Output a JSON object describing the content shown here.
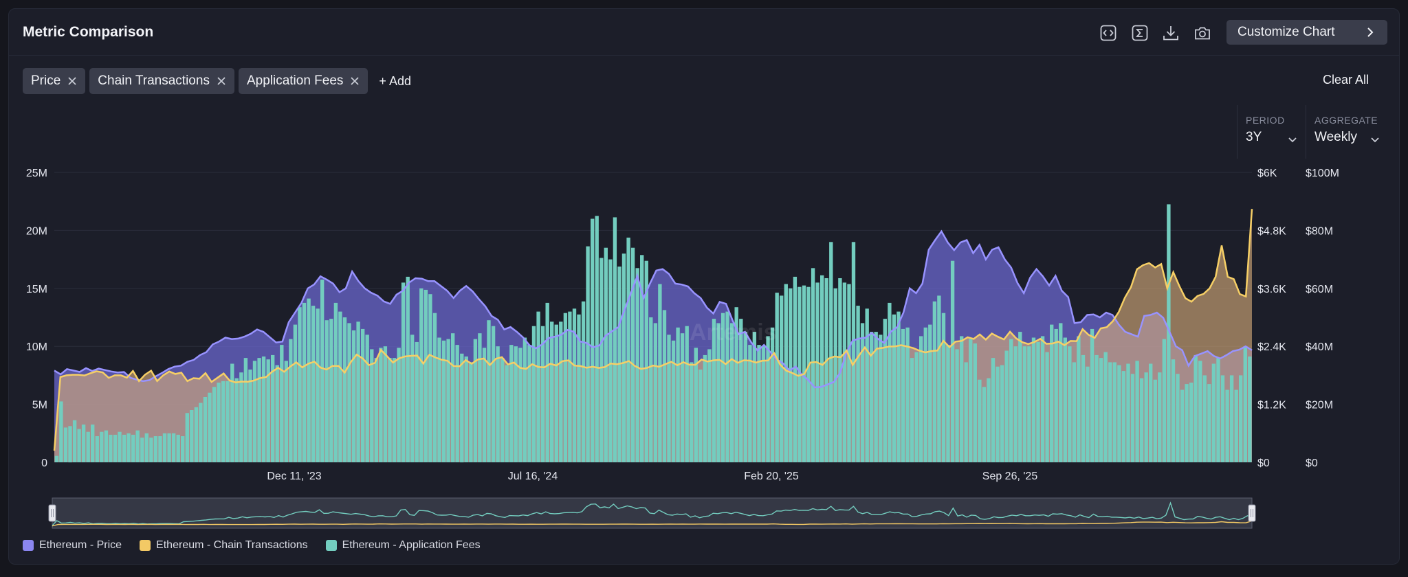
{
  "header": {
    "title": "Metric Comparison",
    "customize_label": "Customize Chart"
  },
  "toolbar_icons": [
    "code-icon",
    "sigma-icon",
    "download-icon",
    "camera-icon"
  ],
  "chips": [
    {
      "label": "Price"
    },
    {
      "label": "Chain Transactions"
    },
    {
      "label": "Application Fees"
    }
  ],
  "add_label": "+ Add",
  "clear_label": "Clear All",
  "period": {
    "label": "PERIOD",
    "value": "3Y"
  },
  "aggregate": {
    "label": "AGGREGATE",
    "value": "Weekly"
  },
  "watermark": "Artemis",
  "chart_data": {
    "type": "area",
    "x_start": "Oct 16, '23",
    "x_end": "Nov 21, '25",
    "x_tick_labels": [
      "Dec 11, '23",
      "Jul 16, '24",
      "Feb 20, '25",
      "Sep 26, '25"
    ],
    "y_left": {
      "ticks": [
        "0",
        "5M",
        "10M",
        "15M",
        "20M",
        "25M"
      ],
      "range": [
        0,
        25000000
      ]
    },
    "y_right1": {
      "ticks": [
        "$0",
        "$1.2K",
        "$2.4K",
        "$3.6K",
        "$4.8K",
        "$6K"
      ],
      "range": [
        0,
        6000
      ]
    },
    "y_right2": {
      "ticks": [
        "$0",
        "$20M",
        "$40M",
        "$60M",
        "$80M",
        "$100M"
      ],
      "range": [
        0,
        100000000
      ]
    },
    "grid": true,
    "legend_position": "bottom-left",
    "series": [
      {
        "name": "Ethereum - Price",
        "axis": "right1",
        "render": "area",
        "color": "#8b86f0",
        "values": [
          1900,
          1820,
          1930,
          1900,
          1870,
          1950,
          1890,
          1940,
          1910,
          1880,
          1860,
          1870,
          1750,
          1710,
          1680,
          1700,
          1780,
          1850,
          1930,
          1980,
          2000,
          2080,
          2120,
          2220,
          2280,
          2440,
          2500,
          2580,
          2550,
          2560,
          2600,
          2660,
          2750,
          2700,
          2590,
          2480,
          2500,
          2900,
          3100,
          3300,
          3600,
          3680,
          3850,
          3780,
          3700,
          3520,
          3600,
          3950,
          3750,
          3600,
          3510,
          3450,
          3330,
          3280,
          3470,
          3550,
          3720,
          3810,
          3800,
          3750,
          3750,
          3650,
          3550,
          3400,
          3550,
          3650,
          3540,
          3380,
          3230,
          3030,
          2950,
          2750,
          2800,
          2700,
          2580,
          2420,
          2360,
          2440,
          2570,
          2600,
          2640,
          2740,
          2700,
          2500,
          2470,
          2380,
          2420,
          2620,
          2710,
          2800,
          3160,
          3500,
          3860,
          3400,
          3700,
          3970,
          4000,
          3900,
          3700,
          3680,
          3640,
          3500,
          3400,
          3200,
          3080,
          3320,
          3280,
          2950,
          2650,
          2700,
          2480,
          2310,
          2430,
          2280,
          2130,
          2050,
          1900,
          1980,
          1810,
          1700,
          1550,
          1560,
          1610,
          1660,
          1850,
          2270,
          2520,
          2560,
          2580,
          2680,
          2550,
          2470,
          2700,
          2800,
          3100,
          3600,
          3500,
          3700,
          4400,
          4600,
          4780,
          4550,
          4390,
          4550,
          4600,
          4330,
          4500,
          4200,
          4400,
          4450,
          4200,
          4030,
          3710,
          3500,
          3820,
          4000,
          3850,
          3660,
          3860,
          3550,
          3420,
          2880,
          2900,
          3050,
          3060,
          3000,
          3100,
          3050,
          2850,
          2700,
          2650,
          2600,
          3030,
          3050,
          3100,
          2990,
          2700,
          2400,
          2320,
          2000,
          2200,
          2250,
          2300,
          2200,
          2150,
          2220,
          2300,
          2330,
          2400,
          2320
        ]
      },
      {
        "name": "Ethereum - Chain Transactions",
        "axis": "left",
        "render": "area",
        "color": "#f3c965",
        "values": [
          1000000,
          7350000,
          7500000,
          7550000,
          7550000,
          7490000,
          7690000,
          7850000,
          7750000,
          7280000,
          7500000,
          7500000,
          7300000,
          7880000,
          7000000,
          7560000,
          7900000,
          7000000,
          7500000,
          7830000,
          7620000,
          7730000,
          7000000,
          7260000,
          7210000,
          7690000,
          6930000,
          7300000,
          7660000,
          7050000,
          6890000,
          6960000,
          6950000,
          7050000,
          7260000,
          7350000,
          7800000,
          8150000,
          7810000,
          8250000,
          8620000,
          8190000,
          8510000,
          8680000,
          8170000,
          8000000,
          8310000,
          8310000,
          7730000,
          8630000,
          9290000,
          8950000,
          8380000,
          8570000,
          9690000,
          9150000,
          8600000,
          8970000,
          9130000,
          9180000,
          9200000,
          8520000,
          9280000,
          9040000,
          8850000,
          8750000,
          8300000,
          8280000,
          8810000,
          8500000,
          8860000,
          8950000,
          8390000,
          8930000,
          9070000,
          8450000,
          8600000,
          8150000,
          8050000,
          8460000,
          8220000,
          8190000,
          8500000,
          8350000,
          8720000,
          8790000,
          8340000,
          8300000,
          8160000,
          8240000,
          8140000,
          8210000,
          8520000,
          8460000,
          8560000,
          8730000,
          8300000,
          8050000,
          8140000,
          8340000,
          8240000,
          8460000,
          8670000,
          8370000,
          8640000,
          8410000,
          8410000,
          8860000,
          8690000,
          8800000,
          8830000,
          8470000,
          8900000,
          8580000,
          8800000,
          8770000,
          8600000,
          8750000,
          8780000,
          9420000,
          8410000,
          7900000,
          7700000,
          7450000,
          7620000,
          8600000,
          8650000,
          8400000,
          8940000,
          9130000,
          9060000,
          9630000,
          8400000,
          9180000,
          9900000,
          9200000,
          9800000,
          9870000,
          9980000,
          10000000,
          10100000,
          9980000,
          9850000,
          9630000,
          9470000,
          9590000,
          9640000,
          10470000,
          9930000,
          10410000,
          10470000,
          10780000,
          10640000,
          11030000,
          10580000,
          11110000,
          10830000,
          10600000,
          11260000,
          10700000,
          10360000,
          10200000,
          10360000,
          10650000,
          10220000,
          10240000,
          10400000,
          10100000,
          10460000,
          10450000,
          11480000,
          10990000,
          10730000,
          11550000,
          11650000,
          12160000,
          12980000,
          14200000,
          15100000,
          16650000,
          17000000,
          17180000,
          16800000,
          17100000,
          15000000,
          16400000,
          15200000,
          14150000,
          13850000,
          14350000,
          14520000,
          15000000,
          16000000,
          18700000,
          16000000,
          15800000,
          14500000,
          14300000,
          21850000
        ]
      },
      {
        "name": "Ethereum - Application Fees",
        "axis": "right2",
        "render": "bar",
        "color": "#73cdbf",
        "values": [
          2200000,
          21000000,
          12000000,
          12500000,
          14500000,
          11500000,
          13000000,
          10500000,
          13000000,
          9000000,
          10500000,
          11000000,
          9500000,
          9500000,
          10500000,
          9500000,
          10000000,
          9500000,
          11000000,
          8500000,
          10000000,
          8500000,
          9000000,
          9000000,
          10000000,
          10000000,
          10000000,
          9500000,
          9000000,
          17000000,
          18000000,
          19000000,
          20500000,
          22500000,
          24000000,
          26000000,
          27500000,
          28000000,
          28000000,
          34000000,
          29000000,
          31000000,
          36000000,
          32000000,
          35000000,
          36000000,
          36500000,
          35500000,
          37000000,
          33500000,
          40500000,
          35000000,
          42500000,
          47500000,
          53500000,
          55000000,
          56500000,
          54000000,
          53000000,
          63000000,
          49000000,
          49500000,
          55000000,
          52000000,
          50000000,
          48000000,
          45500000,
          48500000,
          46000000,
          44000000,
          39000000,
          36000000,
          39500000,
          40000000,
          36000000,
          36000000,
          39500000,
          62000000,
          64000000,
          44000000,
          41500000,
          60000000,
          59500000,
          58000000,
          51500000,
          43000000,
          42000000,
          42500000,
          44500000,
          40500000,
          37500000,
          36500000,
          34500000,
          42500000,
          44500000,
          39500000,
          49000000,
          47000000,
          40000000,
          36000000,
          33500000,
          40500000,
          40000000,
          39500000,
          43000000,
          40500000,
          47000000,
          52000000,
          47000000,
          55000000,
          48500000,
          47500000,
          48500000,
          51500000,
          52000000,
          53000000,
          51000000,
          55500000,
          74500000,
          84000000,
          85000000,
          70500000,
          74000000,
          70000000,
          84500000,
          67500000,
          72000000,
          77500000,
          74000000,
          67000000,
          71500000,
          69500000,
          50000000,
          48000000,
          61500000,
          52500000,
          44000000,
          42000000,
          46500000,
          44500000,
          47000000,
          34500000,
          39500000,
          32000000,
          37000000,
          39000000,
          49500000,
          48000000,
          51500000,
          52000000,
          48000000,
          53500000,
          49500000,
          45000000,
          40500000,
          45000000,
          40500000,
          40000000,
          43500000,
          46500000,
          58500000,
          57500000,
          61500000,
          60000000,
          64000000,
          60500000,
          61000000,
          60500000,
          67000000,
          62000000,
          64500000,
          63500000,
          76000000,
          60000000,
          63500000,
          62000000,
          61500000,
          76000000,
          54000000,
          48000000,
          53000000,
          45000000,
          45000000,
          44000000,
          49500000,
          55000000,
          51000000,
          52000000,
          46000000,
          46500000,
          36000000,
          38000000,
          43500000,
          46500000,
          47500000,
          55500000,
          57500000,
          51500000,
          40500000,
          69500000,
          39000000,
          43500000,
          34500000,
          42500000,
          41000000,
          28500000,
          26000000,
          29000000,
          36000000,
          33000000,
          33500000,
          38500000,
          42500000,
          40000000,
          45000000,
          40000000,
          40000000,
          43000000,
          41500000,
          43500000,
          38000000,
          47500000,
          46000000,
          48000000,
          43000000,
          40000000,
          34500000,
          43500000,
          37000000,
          33000000,
          46000000,
          37000000,
          36000000,
          38000000,
          34500000,
          34500000,
          33500000,
          31500000,
          34000000,
          30500000,
          35000000,
          29000000,
          31000000,
          34000000,
          28500000,
          31000000,
          42500000,
          89000000,
          35500000,
          30500000,
          25000000,
          27000000,
          27500000,
          37000000,
          35000000,
          30000000,
          27000000,
          34000000,
          36000000,
          30000000,
          25000000,
          30000000,
          25000000,
          30000000,
          40000000,
          36500000
        ]
      }
    ]
  }
}
